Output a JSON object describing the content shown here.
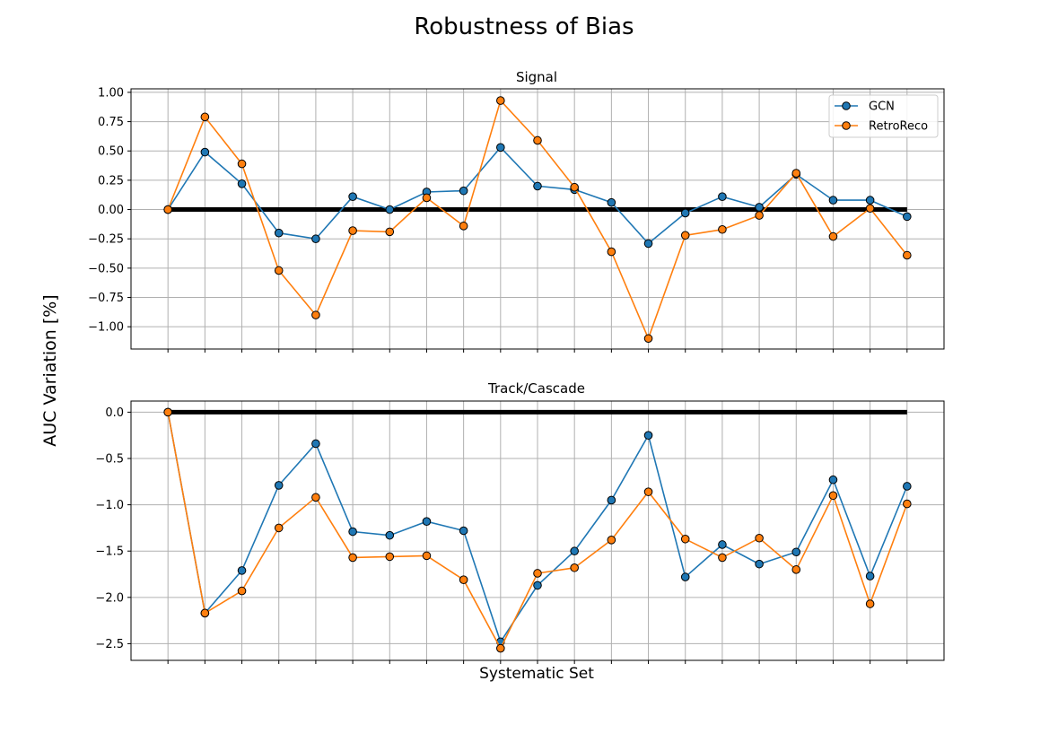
{
  "figure": {
    "suptitle": "Robustness of Bias",
    "ylabel": "AUC Variation [%]",
    "xlabel": "Systematic Set"
  },
  "colors": {
    "gcn": "#1f77b4",
    "retroreco": "#ff7f0e",
    "reference": "#000000",
    "grid": "#b0b0b0"
  },
  "chart_data": [
    {
      "type": "line",
      "title": "Signal",
      "xlabel": "",
      "ylabel": "",
      "x": [
        0,
        1,
        2,
        3,
        4,
        5,
        6,
        7,
        8,
        9,
        10,
        11,
        12,
        13,
        14,
        15,
        16,
        17,
        18,
        19,
        20
      ],
      "xlim": [
        -1,
        21
      ],
      "ylim": [
        -1.19,
        1.03
      ],
      "yticks": [
        1.0,
        0.75,
        0.5,
        0.25,
        0.0,
        -0.25,
        -0.5,
        -0.75,
        -1.0
      ],
      "ytick_labels": [
        "1.00",
        "0.75",
        "0.50",
        "0.25",
        "0.00",
        "−0.25",
        "−0.50",
        "−0.75",
        "−1.00"
      ],
      "grid": true,
      "legend_position": "top-right",
      "reference_line": 0,
      "series": [
        {
          "name": "GCN",
          "values": [
            0.0,
            0.49,
            0.22,
            -0.2,
            -0.25,
            0.11,
            0.0,
            0.15,
            0.16,
            0.53,
            0.2,
            0.17,
            0.06,
            -0.29,
            -0.03,
            0.11,
            0.02,
            0.3,
            0.08,
            0.08,
            -0.06
          ]
        },
        {
          "name": "RetroReco",
          "values": [
            0.0,
            0.79,
            0.39,
            -0.52,
            -0.9,
            -0.18,
            -0.19,
            0.1,
            -0.14,
            0.93,
            0.59,
            0.19,
            -0.36,
            -1.1,
            -0.22,
            -0.17,
            -0.05,
            0.31,
            -0.23,
            0.01,
            -0.39
          ]
        }
      ]
    },
    {
      "type": "line",
      "title": "Track/Cascade",
      "xlabel": "",
      "ylabel": "",
      "x": [
        0,
        1,
        2,
        3,
        4,
        5,
        6,
        7,
        8,
        9,
        10,
        11,
        12,
        13,
        14,
        15,
        16,
        17,
        18,
        19,
        20
      ],
      "xlim": [
        -1,
        21
      ],
      "ylim": [
        -2.68,
        0.12
      ],
      "yticks": [
        0.0,
        -0.5,
        -1.0,
        -1.5,
        -2.0,
        -2.5
      ],
      "ytick_labels": [
        "0.0",
        "−0.5",
        "−1.0",
        "−1.5",
        "−2.0",
        "−2.5"
      ],
      "grid": true,
      "legend_position": "",
      "reference_line": 0,
      "series": [
        {
          "name": "GCN",
          "values": [
            0.0,
            -2.17,
            -1.71,
            -0.79,
            -0.34,
            -1.29,
            -1.33,
            -1.18,
            -1.28,
            -2.48,
            -1.87,
            -1.5,
            -0.95,
            -0.25,
            -1.78,
            -1.43,
            -1.64,
            -1.51,
            -0.73,
            -1.77,
            -0.8
          ]
        },
        {
          "name": "RetroReco",
          "values": [
            0.0,
            -2.17,
            -1.93,
            -1.25,
            -0.92,
            -1.57,
            -1.56,
            -1.55,
            -1.81,
            -2.55,
            -1.74,
            -1.68,
            -1.38,
            -0.86,
            -1.37,
            -1.57,
            -1.36,
            -1.7,
            -0.9,
            -2.07,
            -0.99
          ]
        }
      ]
    }
  ]
}
